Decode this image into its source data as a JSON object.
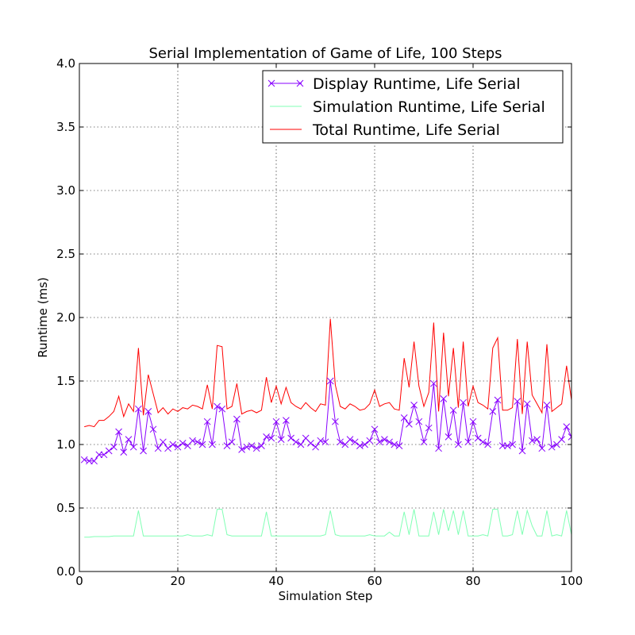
{
  "chart_data": {
    "type": "line",
    "title": "Serial Implementation of Game of Life, 100 Steps",
    "xlabel": "Simulation Step",
    "ylabel": "Runtime (ms)",
    "xlim": [
      0,
      100
    ],
    "ylim": [
      0.0,
      4.0
    ],
    "xticks": [
      0,
      20,
      40,
      60,
      80,
      100
    ],
    "yticks": [
      0.0,
      0.5,
      1.0,
      1.5,
      2.0,
      2.5,
      3.0,
      3.5,
      4.0
    ],
    "xtick_labels": [
      "0",
      "20",
      "40",
      "60",
      "80",
      "100"
    ],
    "ytick_labels": [
      "0.0",
      "0.5",
      "1.0",
      "1.5",
      "2.0",
      "2.5",
      "3.0",
      "3.5",
      "4.0"
    ],
    "grid": true,
    "legend_position": "top-right",
    "x": [
      1,
      2,
      3,
      4,
      5,
      6,
      7,
      8,
      9,
      10,
      11,
      12,
      13,
      14,
      15,
      16,
      17,
      18,
      19,
      20,
      21,
      22,
      23,
      24,
      25,
      26,
      27,
      28,
      29,
      30,
      31,
      32,
      33,
      34,
      35,
      36,
      37,
      38,
      39,
      40,
      41,
      42,
      43,
      44,
      45,
      46,
      47,
      48,
      49,
      50,
      51,
      52,
      53,
      54,
      55,
      56,
      57,
      58,
      59,
      60,
      61,
      62,
      63,
      64,
      65,
      66,
      67,
      68,
      69,
      70,
      71,
      72,
      73,
      74,
      75,
      76,
      77,
      78,
      79,
      80,
      81,
      82,
      83,
      84,
      85,
      86,
      87,
      88,
      89,
      90,
      91,
      92,
      93,
      94,
      95,
      96,
      97,
      98,
      99,
      100
    ],
    "series": [
      {
        "name": "Display Runtime, Life Serial",
        "color": "#8800ff",
        "marker": "x",
        "values": [
          0.88,
          0.87,
          0.87,
          0.92,
          0.92,
          0.95,
          0.98,
          1.1,
          0.94,
          1.04,
          0.98,
          1.28,
          0.95,
          1.26,
          1.12,
          0.97,
          1.02,
          0.97,
          1.0,
          0.98,
          1.01,
          0.99,
          1.03,
          1.02,
          1.0,
          1.18,
          1.0,
          1.3,
          1.28,
          0.99,
          1.02,
          1.2,
          0.96,
          0.98,
          0.99,
          0.97,
          0.99,
          1.06,
          1.05,
          1.18,
          1.04,
          1.19,
          1.05,
          1.02,
          1.0,
          1.05,
          1.01,
          0.98,
          1.03,
          1.02,
          1.5,
          1.18,
          1.02,
          1.0,
          1.04,
          1.02,
          0.99,
          1.0,
          1.03,
          1.12,
          1.02,
          1.04,
          1.02,
          1.0,
          0.99,
          1.21,
          1.16,
          1.31,
          1.18,
          1.02,
          1.13,
          1.48,
          0.97,
          1.36,
          1.06,
          1.27,
          1.0,
          1.33,
          1.02,
          1.18,
          1.05,
          1.02,
          1.0,
          1.26,
          1.35,
          0.99,
          0.99,
          1.0,
          1.34,
          0.95,
          1.32,
          1.03,
          1.04,
          0.97,
          1.31,
          0.98,
          1.0,
          1.04,
          1.14,
          1.06
        ]
      },
      {
        "name": "Simulation Runtime, Life Serial",
        "color": "#80ffb4",
        "marker": "",
        "values": [
          0.27,
          0.27,
          0.275,
          0.275,
          0.275,
          0.275,
          0.28,
          0.28,
          0.28,
          0.28,
          0.28,
          0.48,
          0.28,
          0.28,
          0.28,
          0.28,
          0.28,
          0.28,
          0.28,
          0.28,
          0.28,
          0.29,
          0.28,
          0.28,
          0.28,
          0.29,
          0.28,
          0.49,
          0.49,
          0.29,
          0.28,
          0.28,
          0.28,
          0.28,
          0.28,
          0.28,
          0.28,
          0.47,
          0.28,
          0.28,
          0.28,
          0.28,
          0.28,
          0.28,
          0.28,
          0.28,
          0.28,
          0.28,
          0.28,
          0.29,
          0.48,
          0.29,
          0.28,
          0.28,
          0.28,
          0.28,
          0.28,
          0.28,
          0.29,
          0.28,
          0.28,
          0.28,
          0.31,
          0.28,
          0.28,
          0.47,
          0.29,
          0.49,
          0.28,
          0.28,
          0.28,
          0.47,
          0.29,
          0.49,
          0.32,
          0.48,
          0.29,
          0.48,
          0.28,
          0.28,
          0.28,
          0.29,
          0.28,
          0.49,
          0.49,
          0.28,
          0.28,
          0.29,
          0.48,
          0.29,
          0.48,
          0.36,
          0.28,
          0.28,
          0.48,
          0.28,
          0.29,
          0.28,
          0.48,
          0.29
        ]
      },
      {
        "name": "Total Runtime, Life Serial",
        "color": "#ff0000",
        "marker": "",
        "values": [
          1.14,
          1.15,
          1.14,
          1.19,
          1.19,
          1.22,
          1.26,
          1.38,
          1.22,
          1.32,
          1.26,
          1.76,
          1.23,
          1.55,
          1.4,
          1.25,
          1.29,
          1.24,
          1.28,
          1.26,
          1.29,
          1.28,
          1.31,
          1.3,
          1.28,
          1.47,
          1.28,
          1.78,
          1.77,
          1.28,
          1.3,
          1.48,
          1.24,
          1.26,
          1.27,
          1.25,
          1.27,
          1.53,
          1.33,
          1.46,
          1.32,
          1.45,
          1.33,
          1.3,
          1.28,
          1.33,
          1.29,
          1.26,
          1.32,
          1.31,
          1.99,
          1.47,
          1.3,
          1.28,
          1.32,
          1.3,
          1.27,
          1.28,
          1.32,
          1.43,
          1.3,
          1.32,
          1.33,
          1.28,
          1.27,
          1.68,
          1.45,
          1.81,
          1.46,
          1.3,
          1.41,
          1.96,
          1.26,
          1.88,
          1.38,
          1.76,
          1.29,
          1.81,
          1.3,
          1.46,
          1.33,
          1.31,
          1.28,
          1.76,
          1.84,
          1.27,
          1.27,
          1.29,
          1.83,
          1.24,
          1.81,
          1.39,
          1.32,
          1.25,
          1.79,
          1.26,
          1.29,
          1.32,
          1.62,
          1.35
        ]
      }
    ]
  }
}
